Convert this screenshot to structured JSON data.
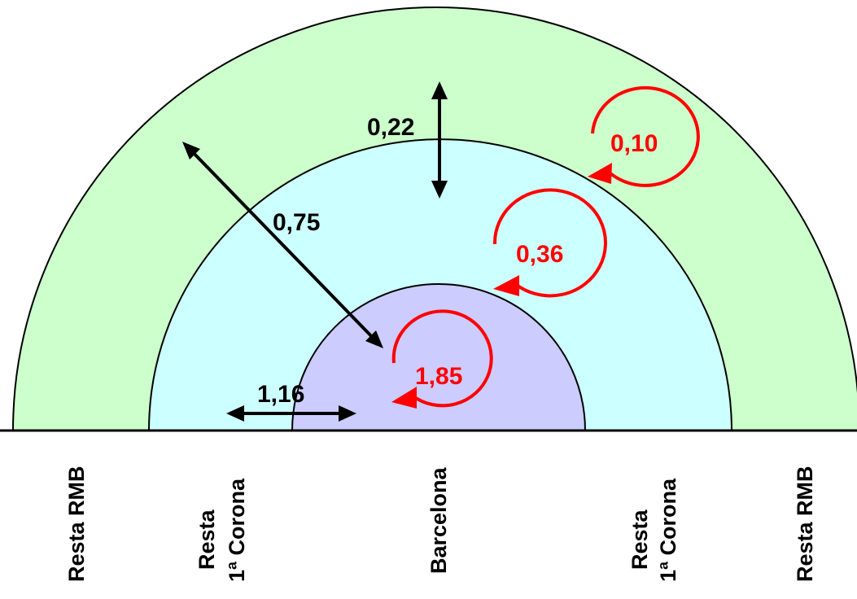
{
  "colors": {
    "outer_ring": "#ccffcc",
    "middle_ring": "#ccffff",
    "inner_core": "#ccccff",
    "internal_flow": "#ff0000",
    "cross_flow": "#000000",
    "outline": "#000000"
  },
  "flows": {
    "outer_internal": "0,10",
    "middle_internal": "0,36",
    "core_internal": "1,85",
    "middle_outer": "0,22",
    "core_outer": "0,75",
    "core_middle": "1,16"
  },
  "zones": {
    "left_outer": "Resta RMB",
    "left_middle_line1": "Resta",
    "left_middle_line2": "1ª Corona",
    "center": "Barcelona",
    "right_middle_line1": "Resta",
    "right_middle_line2": "1ª Corona",
    "right_outer": "Resta RMB"
  }
}
